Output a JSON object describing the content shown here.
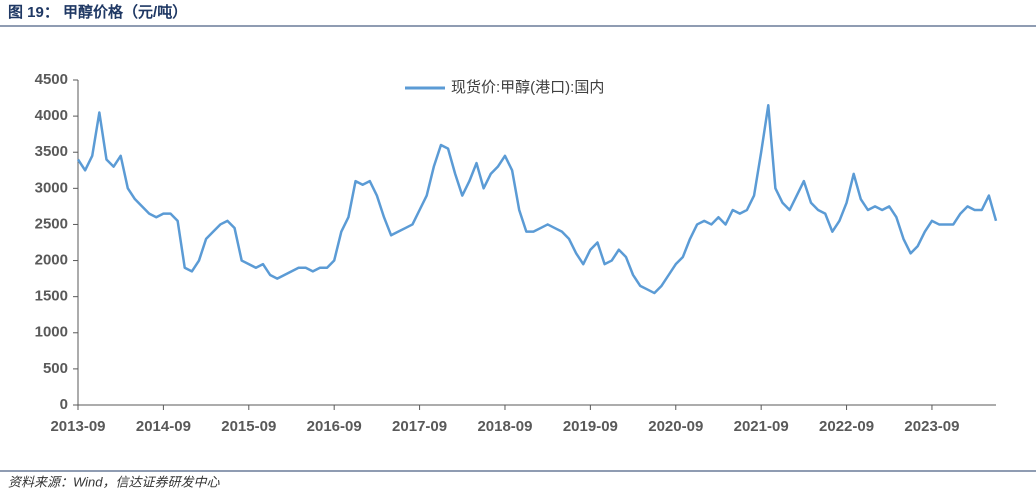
{
  "chart_data": {
    "type": "line",
    "title": "图 19：  甲醇价格（元/吨）",
    "source": "资料来源：Wind，信达证券研发中心",
    "x": [
      "2013-09",
      "2013-10",
      "2013-11",
      "2013-12",
      "2014-01",
      "2014-02",
      "2014-03",
      "2014-04",
      "2014-05",
      "2014-06",
      "2014-07",
      "2014-08",
      "2014-09",
      "2014-10",
      "2014-11",
      "2014-12",
      "2015-01",
      "2015-02",
      "2015-03",
      "2015-04",
      "2015-05",
      "2015-06",
      "2015-07",
      "2015-08",
      "2015-09",
      "2015-10",
      "2015-11",
      "2015-12",
      "2016-01",
      "2016-02",
      "2016-03",
      "2016-04",
      "2016-05",
      "2016-06",
      "2016-07",
      "2016-08",
      "2016-09",
      "2016-10",
      "2016-11",
      "2016-12",
      "2017-01",
      "2017-02",
      "2017-03",
      "2017-04",
      "2017-05",
      "2017-06",
      "2017-07",
      "2017-08",
      "2017-09",
      "2017-10",
      "2017-11",
      "2017-12",
      "2018-01",
      "2018-02",
      "2018-03",
      "2018-04",
      "2018-05",
      "2018-06",
      "2018-07",
      "2018-08",
      "2018-09",
      "2018-10",
      "2018-11",
      "2018-12",
      "2019-01",
      "2019-02",
      "2019-03",
      "2019-04",
      "2019-05",
      "2019-06",
      "2019-07",
      "2019-08",
      "2019-09",
      "2019-10",
      "2019-11",
      "2019-12",
      "2020-01",
      "2020-02",
      "2020-03",
      "2020-04",
      "2020-05",
      "2020-06",
      "2020-07",
      "2020-08",
      "2020-09",
      "2020-10",
      "2020-11",
      "2020-12",
      "2021-01",
      "2021-02",
      "2021-03",
      "2021-04",
      "2021-05",
      "2021-06",
      "2021-07",
      "2021-08",
      "2021-09",
      "2021-10",
      "2021-11",
      "2021-12",
      "2022-01",
      "2022-02",
      "2022-03",
      "2022-04",
      "2022-05",
      "2022-06",
      "2022-07",
      "2022-08",
      "2022-09",
      "2022-10",
      "2022-11",
      "2022-12",
      "2023-01",
      "2023-02",
      "2023-03",
      "2023-04",
      "2023-05",
      "2023-06",
      "2023-07",
      "2023-08",
      "2023-09",
      "2023-10",
      "2023-11",
      "2023-12",
      "2024-01",
      "2024-02",
      "2024-03",
      "2024-04",
      "2024-05",
      "2024-06"
    ],
    "series": [
      {
        "name": "现货价:甲醇(港口):国内",
        "color": "#5b9bd5",
        "values": [
          3400,
          3250,
          3450,
          4050,
          3400,
          3300,
          3450,
          3000,
          2850,
          2750,
          2650,
          2600,
          2650,
          2650,
          2550,
          1900,
          1850,
          2000,
          2300,
          2400,
          2500,
          2550,
          2450,
          2000,
          1950,
          1900,
          1950,
          1800,
          1750,
          1800,
          1850,
          1900,
          1900,
          1850,
          1900,
          1900,
          2000,
          2400,
          2600,
          3100,
          3050,
          3100,
          2900,
          2600,
          2350,
          2400,
          2450,
          2500,
          2700,
          2900,
          3300,
          3600,
          3550,
          3200,
          2900,
          3100,
          3350,
          3000,
          3200,
          3300,
          3450,
          3250,
          2700,
          2400,
          2400,
          2450,
          2500,
          2450,
          2400,
          2300,
          2100,
          1950,
          2150,
          2250,
          1950,
          2000,
          2150,
          2050,
          1800,
          1650,
          1600,
          1550,
          1650,
          1800,
          1950,
          2050,
          2300,
          2500,
          2550,
          2500,
          2600,
          2500,
          2700,
          2650,
          2700,
          2900,
          3500,
          4150,
          3000,
          2800,
          2700,
          2900,
          3100,
          2800,
          2700,
          2650,
          2400,
          2550,
          2800,
          3200,
          2850,
          2700,
          2750,
          2700,
          2750,
          2600,
          2300,
          2100,
          2200,
          2400,
          2550,
          2500,
          2500,
          2500,
          2650,
          2750,
          2700,
          2700,
          2900,
          2550
        ]
      }
    ],
    "xticks": [
      "2013-09",
      "2014-09",
      "2015-09",
      "2016-09",
      "2017-09",
      "2018-09",
      "2019-09",
      "2020-09",
      "2021-09",
      "2022-09",
      "2023-09"
    ],
    "ylim": [
      0,
      4500
    ],
    "yticks": [
      0,
      500,
      1000,
      1500,
      2000,
      2500,
      3000,
      3500,
      4000,
      4500
    ],
    "grid": false,
    "legend": "top"
  }
}
